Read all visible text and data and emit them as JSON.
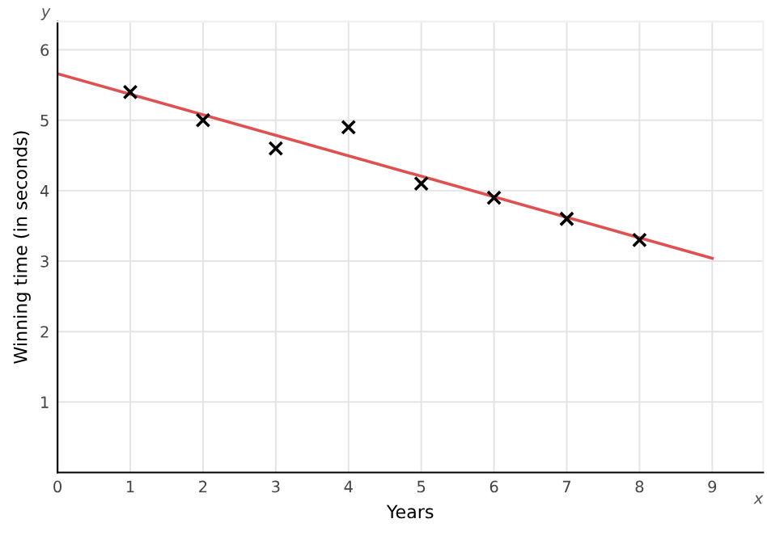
{
  "chart_data": {
    "type": "scatter",
    "xlabel": "Years",
    "ylabel": "Winning time (in seconds)",
    "x": [
      1,
      2,
      3,
      4,
      5,
      6,
      7,
      8
    ],
    "series": [
      {
        "color": "#000000",
        "marker": "cross",
        "values": [
          5.4,
          5.0,
          4.6,
          4.9,
          4.1,
          3.9,
          3.6,
          3.3
        ]
      },
      {
        "type": "line",
        "color": "#e05050",
        "x": [
          0,
          9
        ],
        "values": [
          5.66,
          3.04
        ]
      }
    ],
    "annotations": [
      "x",
      "y"
    ],
    "xlim": [
      0,
      9.7
    ],
    "ylim": [
      0,
      6.4
    ],
    "xticks": [
      0,
      1,
      2,
      3,
      4,
      5,
      6,
      7,
      8,
      9
    ],
    "yticks": [
      1,
      2,
      3,
      4,
      5,
      6
    ],
    "grid": true
  }
}
